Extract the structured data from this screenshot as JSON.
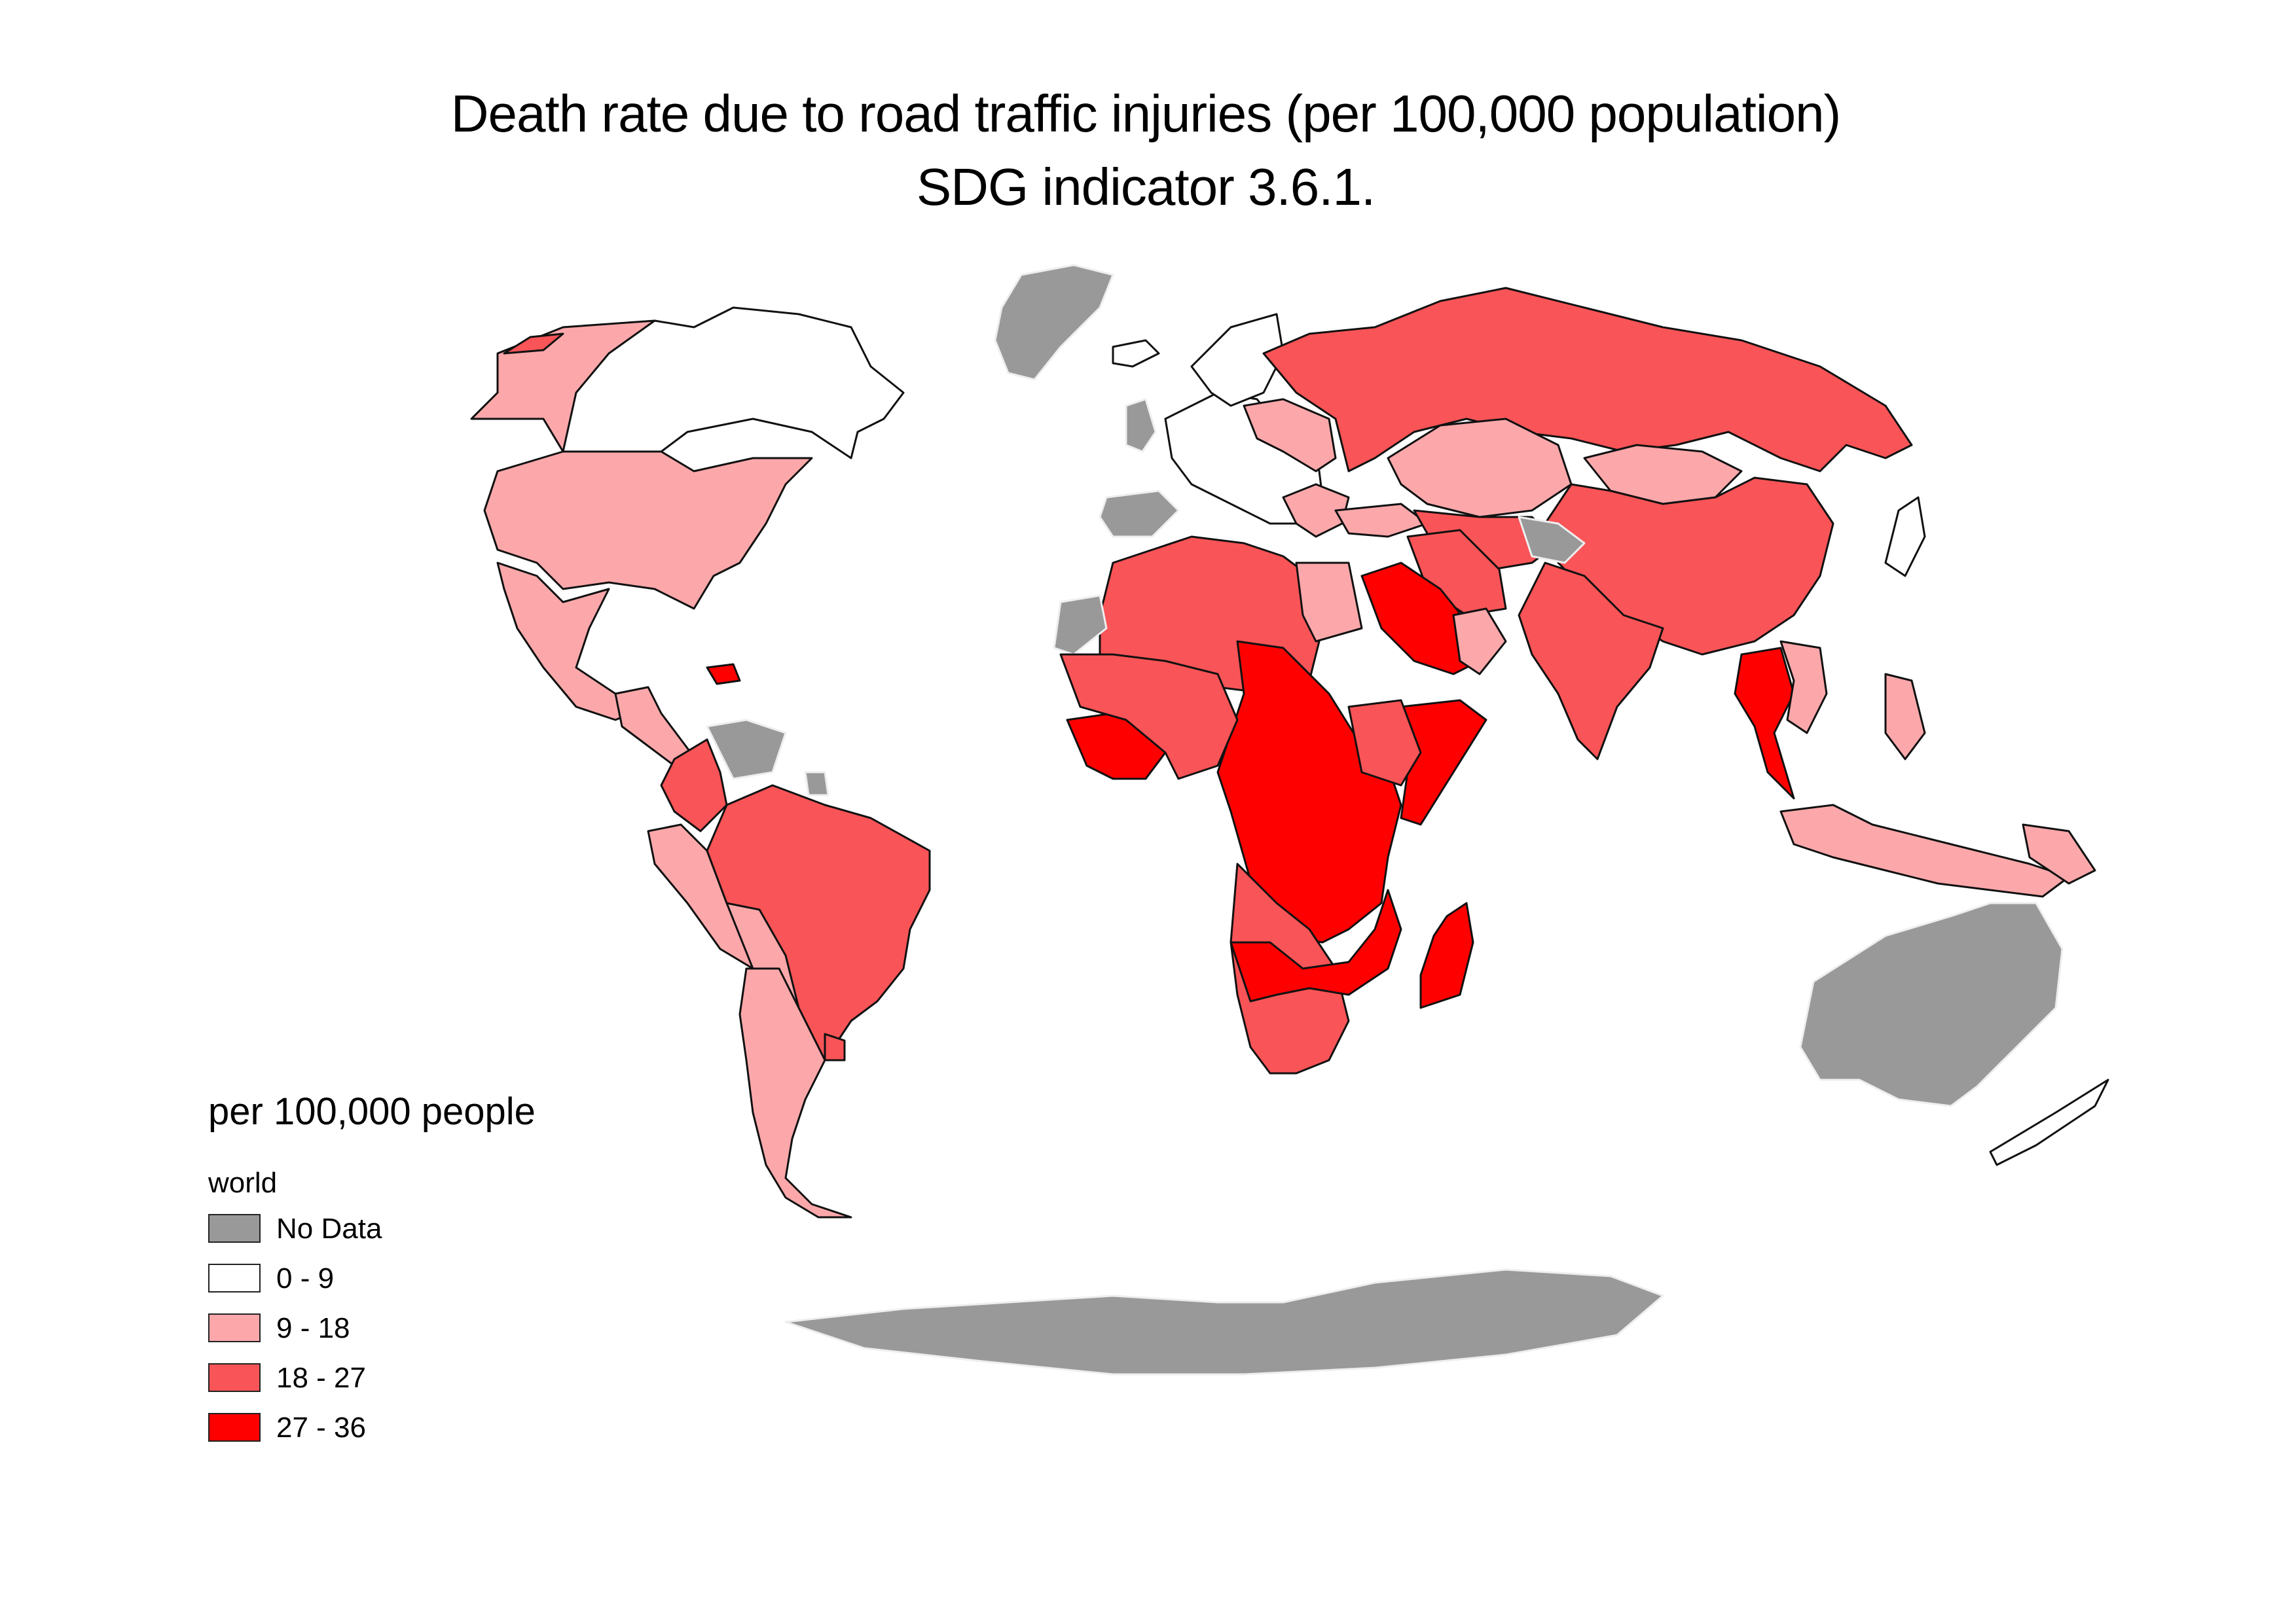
{
  "title": {
    "line1": "Death rate due to road traffic injuries (per 100,000 population)",
    "line2": "SDG indicator 3.6.1."
  },
  "legend": {
    "title": "per 100,000 people",
    "group": "world",
    "items": [
      {
        "label": "No Data",
        "color": "#999999"
      },
      {
        "label": "0 - 9",
        "color": "#ffffff"
      },
      {
        "label": "9 - 18",
        "color": "#fca8ab"
      },
      {
        "label": "18 - 27",
        "color": "#f95457"
      },
      {
        "label": "27 - 36",
        "color": "#ff0000"
      }
    ]
  },
  "colors": {
    "no_data": "#999999",
    "band_0_9": "#ffffff",
    "band_9_18": "#fca8ab",
    "band_18_27": "#f95457",
    "band_27_36": "#ff0000",
    "outline": "#111111"
  }
}
